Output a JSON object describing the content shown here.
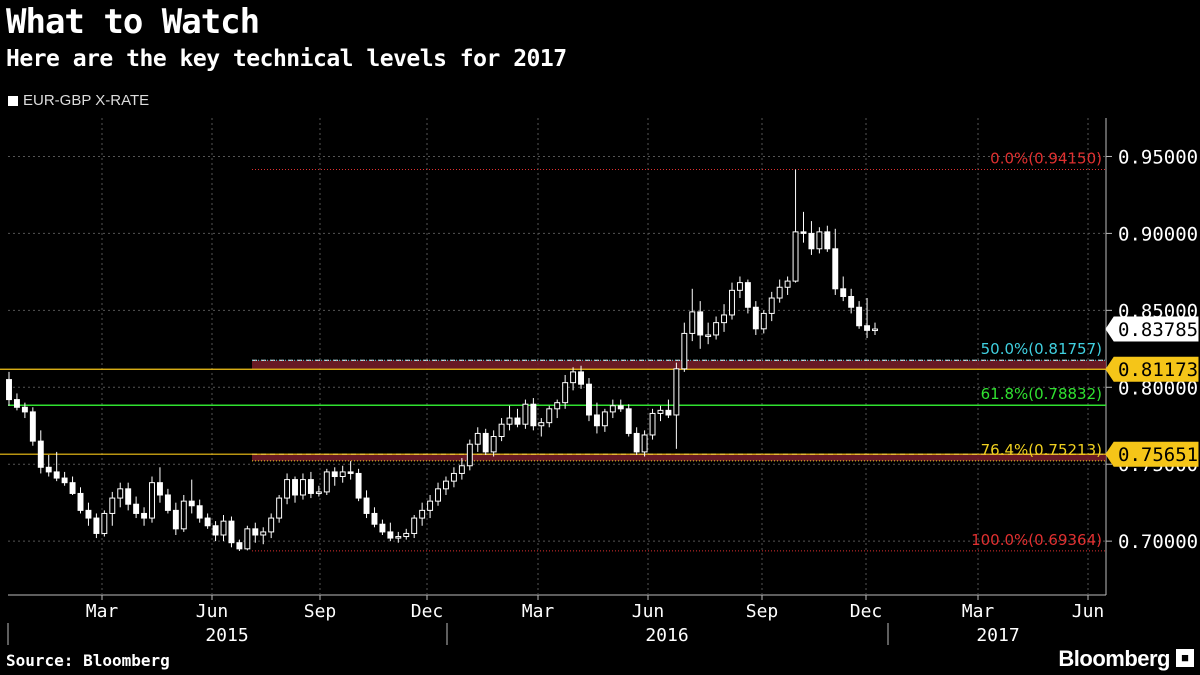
{
  "header": {
    "title": "What to Watch",
    "subtitle": "Here are the key technical levels for 2017"
  },
  "footer": {
    "source": "Source: Bloomberg",
    "brand": "Bloomberg"
  },
  "chart_data": {
    "type": "candlestick",
    "legend": [
      {
        "name": "EUR-GBP X-RATE",
        "color": "#ffffff"
      }
    ],
    "ylim": [
      0.665,
      0.975
    ],
    "y_ticks": [
      "0.70000",
      "0.75000",
      "0.80000",
      "0.85000",
      "0.90000",
      "0.95000"
    ],
    "x_ticks": [
      "Mar",
      "Jun",
      "Sep",
      "Dec",
      "Mar",
      "Jun",
      "Sep",
      "Dec",
      "Mar",
      "Jun"
    ],
    "year_labels": [
      "2015",
      "2016",
      "2017"
    ],
    "grid": true,
    "last_price": {
      "label": "0.83785",
      "value": 0.83785
    },
    "fib_levels": [
      {
        "label": "0.0%(0.94150)",
        "value": 0.9415,
        "color": "#e03030"
      },
      {
        "label": "50.0%(0.81757)",
        "value": 0.81757,
        "color": "#40d0e0"
      },
      {
        "label": "61.8%(0.78832)",
        "value": 0.78832,
        "color": "#30e030"
      },
      {
        "label": "76.4%(0.75213)",
        "value": 0.75213,
        "color": "#f0d020"
      },
      {
        "label": "100.0%(0.69364)",
        "value": 0.69364,
        "color": "#e03030"
      }
    ],
    "level_lines": [
      {
        "label": "0.81173",
        "value": 0.81173,
        "color": "#f5c518"
      },
      {
        "label": "0.75651",
        "value": 0.75651,
        "color": "#f5c518"
      }
    ],
    "candles": [
      {
        "o": 0.805,
        "h": 0.81,
        "l": 0.788,
        "c": 0.792
      },
      {
        "o": 0.792,
        "h": 0.796,
        "l": 0.785,
        "c": 0.787
      },
      {
        "o": 0.787,
        "h": 0.79,
        "l": 0.78,
        "c": 0.784
      },
      {
        "o": 0.784,
        "h": 0.787,
        "l": 0.762,
        "c": 0.765
      },
      {
        "o": 0.765,
        "h": 0.772,
        "l": 0.744,
        "c": 0.748
      },
      {
        "o": 0.748,
        "h": 0.756,
        "l": 0.742,
        "c": 0.745
      },
      {
        "o": 0.745,
        "h": 0.758,
        "l": 0.739,
        "c": 0.741
      },
      {
        "o": 0.741,
        "h": 0.745,
        "l": 0.736,
        "c": 0.738
      },
      {
        "o": 0.738,
        "h": 0.742,
        "l": 0.73,
        "c": 0.731
      },
      {
        "o": 0.731,
        "h": 0.735,
        "l": 0.718,
        "c": 0.72
      },
      {
        "o": 0.72,
        "h": 0.725,
        "l": 0.71,
        "c": 0.715
      },
      {
        "o": 0.715,
        "h": 0.718,
        "l": 0.702,
        "c": 0.705
      },
      {
        "o": 0.705,
        "h": 0.72,
        "l": 0.703,
        "c": 0.718
      },
      {
        "o": 0.718,
        "h": 0.732,
        "l": 0.71,
        "c": 0.728
      },
      {
        "o": 0.728,
        "h": 0.738,
        "l": 0.722,
        "c": 0.734
      },
      {
        "o": 0.734,
        "h": 0.738,
        "l": 0.72,
        "c": 0.724
      },
      {
        "o": 0.724,
        "h": 0.729,
        "l": 0.715,
        "c": 0.718
      },
      {
        "o": 0.718,
        "h": 0.722,
        "l": 0.71,
        "c": 0.715
      },
      {
        "o": 0.715,
        "h": 0.742,
        "l": 0.712,
        "c": 0.738
      },
      {
        "o": 0.738,
        "h": 0.748,
        "l": 0.725,
        "c": 0.73
      },
      {
        "o": 0.73,
        "h": 0.734,
        "l": 0.718,
        "c": 0.72
      },
      {
        "o": 0.72,
        "h": 0.725,
        "l": 0.704,
        "c": 0.708
      },
      {
        "o": 0.708,
        "h": 0.73,
        "l": 0.706,
        "c": 0.726
      },
      {
        "o": 0.726,
        "h": 0.74,
        "l": 0.718,
        "c": 0.723
      },
      {
        "o": 0.723,
        "h": 0.727,
        "l": 0.712,
        "c": 0.715
      },
      {
        "o": 0.715,
        "h": 0.718,
        "l": 0.708,
        "c": 0.71
      },
      {
        "o": 0.71,
        "h": 0.713,
        "l": 0.7,
        "c": 0.704
      },
      {
        "o": 0.704,
        "h": 0.717,
        "l": 0.7,
        "c": 0.713
      },
      {
        "o": 0.713,
        "h": 0.716,
        "l": 0.696,
        "c": 0.699
      },
      {
        "o": 0.699,
        "h": 0.701,
        "l": 0.6936,
        "c": 0.695
      },
      {
        "o": 0.695,
        "h": 0.71,
        "l": 0.694,
        "c": 0.708
      },
      {
        "o": 0.708,
        "h": 0.712,
        "l": 0.699,
        "c": 0.704
      },
      {
        "o": 0.704,
        "h": 0.709,
        "l": 0.698,
        "c": 0.706
      },
      {
        "o": 0.706,
        "h": 0.718,
        "l": 0.702,
        "c": 0.715
      },
      {
        "o": 0.715,
        "h": 0.73,
        "l": 0.712,
        "c": 0.728
      },
      {
        "o": 0.728,
        "h": 0.744,
        "l": 0.724,
        "c": 0.74
      },
      {
        "o": 0.74,
        "h": 0.742,
        "l": 0.725,
        "c": 0.73
      },
      {
        "o": 0.73,
        "h": 0.744,
        "l": 0.727,
        "c": 0.74
      },
      {
        "o": 0.74,
        "h": 0.745,
        "l": 0.728,
        "c": 0.731
      },
      {
        "o": 0.731,
        "h": 0.736,
        "l": 0.729,
        "c": 0.732
      },
      {
        "o": 0.732,
        "h": 0.747,
        "l": 0.73,
        "c": 0.745
      },
      {
        "o": 0.745,
        "h": 0.748,
        "l": 0.736,
        "c": 0.742
      },
      {
        "o": 0.742,
        "h": 0.749,
        "l": 0.738,
        "c": 0.745
      },
      {
        "o": 0.745,
        "h": 0.752,
        "l": 0.74,
        "c": 0.744
      },
      {
        "o": 0.744,
        "h": 0.747,
        "l": 0.726,
        "c": 0.728
      },
      {
        "o": 0.728,
        "h": 0.733,
        "l": 0.715,
        "c": 0.718
      },
      {
        "o": 0.718,
        "h": 0.722,
        "l": 0.709,
        "c": 0.711
      },
      {
        "o": 0.711,
        "h": 0.714,
        "l": 0.704,
        "c": 0.706
      },
      {
        "o": 0.706,
        "h": 0.712,
        "l": 0.7,
        "c": 0.702
      },
      {
        "o": 0.702,
        "h": 0.706,
        "l": 0.699,
        "c": 0.703
      },
      {
        "o": 0.703,
        "h": 0.708,
        "l": 0.701,
        "c": 0.705
      },
      {
        "o": 0.705,
        "h": 0.717,
        "l": 0.702,
        "c": 0.715
      },
      {
        "o": 0.715,
        "h": 0.725,
        "l": 0.71,
        "c": 0.72
      },
      {
        "o": 0.72,
        "h": 0.73,
        "l": 0.715,
        "c": 0.726
      },
      {
        "o": 0.726,
        "h": 0.738,
        "l": 0.723,
        "c": 0.734
      },
      {
        "o": 0.734,
        "h": 0.742,
        "l": 0.73,
        "c": 0.739
      },
      {
        "o": 0.739,
        "h": 0.748,
        "l": 0.735,
        "c": 0.744
      },
      {
        "o": 0.744,
        "h": 0.754,
        "l": 0.74,
        "c": 0.749
      },
      {
        "o": 0.749,
        "h": 0.766,
        "l": 0.746,
        "c": 0.763
      },
      {
        "o": 0.763,
        "h": 0.774,
        "l": 0.758,
        "c": 0.77
      },
      {
        "o": 0.77,
        "h": 0.773,
        "l": 0.756,
        "c": 0.758
      },
      {
        "o": 0.758,
        "h": 0.772,
        "l": 0.755,
        "c": 0.768
      },
      {
        "o": 0.768,
        "h": 0.78,
        "l": 0.765,
        "c": 0.776
      },
      {
        "o": 0.776,
        "h": 0.788,
        "l": 0.772,
        "c": 0.78
      },
      {
        "o": 0.78,
        "h": 0.786,
        "l": 0.774,
        "c": 0.776
      },
      {
        "o": 0.776,
        "h": 0.792,
        "l": 0.773,
        "c": 0.789
      },
      {
        "o": 0.789,
        "h": 0.793,
        "l": 0.772,
        "c": 0.775
      },
      {
        "o": 0.775,
        "h": 0.78,
        "l": 0.768,
        "c": 0.777
      },
      {
        "o": 0.777,
        "h": 0.788,
        "l": 0.774,
        "c": 0.786
      },
      {
        "o": 0.786,
        "h": 0.792,
        "l": 0.78,
        "c": 0.79
      },
      {
        "o": 0.79,
        "h": 0.808,
        "l": 0.786,
        "c": 0.803
      },
      {
        "o": 0.803,
        "h": 0.813,
        "l": 0.798,
        "c": 0.81
      },
      {
        "o": 0.81,
        "h": 0.814,
        "l": 0.799,
        "c": 0.802
      },
      {
        "o": 0.802,
        "h": 0.806,
        "l": 0.778,
        "c": 0.782
      },
      {
        "o": 0.782,
        "h": 0.79,
        "l": 0.77,
        "c": 0.775
      },
      {
        "o": 0.775,
        "h": 0.786,
        "l": 0.771,
        "c": 0.784
      },
      {
        "o": 0.784,
        "h": 0.792,
        "l": 0.78,
        "c": 0.788
      },
      {
        "o": 0.788,
        "h": 0.792,
        "l": 0.784,
        "c": 0.786
      },
      {
        "o": 0.786,
        "h": 0.789,
        "l": 0.768,
        "c": 0.77
      },
      {
        "o": 0.77,
        "h": 0.774,
        "l": 0.756,
        "c": 0.758
      },
      {
        "o": 0.758,
        "h": 0.772,
        "l": 0.755,
        "c": 0.769
      },
      {
        "o": 0.769,
        "h": 0.786,
        "l": 0.766,
        "c": 0.783
      },
      {
        "o": 0.783,
        "h": 0.788,
        "l": 0.778,
        "c": 0.785
      },
      {
        "o": 0.785,
        "h": 0.792,
        "l": 0.78,
        "c": 0.782
      },
      {
        "o": 0.782,
        "h": 0.816,
        "l": 0.76,
        "c": 0.812
      },
      {
        "o": 0.812,
        "h": 0.842,
        "l": 0.81,
        "c": 0.835
      },
      {
        "o": 0.835,
        "h": 0.864,
        "l": 0.83,
        "c": 0.849
      },
      {
        "o": 0.849,
        "h": 0.856,
        "l": 0.825,
        "c": 0.834
      },
      {
        "o": 0.834,
        "h": 0.842,
        "l": 0.828,
        "c": 0.834
      },
      {
        "o": 0.834,
        "h": 0.846,
        "l": 0.831,
        "c": 0.842
      },
      {
        "o": 0.842,
        "h": 0.854,
        "l": 0.836,
        "c": 0.847
      },
      {
        "o": 0.847,
        "h": 0.868,
        "l": 0.844,
        "c": 0.863
      },
      {
        "o": 0.863,
        "h": 0.872,
        "l": 0.858,
        "c": 0.868
      },
      {
        "o": 0.868,
        "h": 0.87,
        "l": 0.848,
        "c": 0.852
      },
      {
        "o": 0.852,
        "h": 0.856,
        "l": 0.834,
        "c": 0.838
      },
      {
        "o": 0.838,
        "h": 0.85,
        "l": 0.835,
        "c": 0.848
      },
      {
        "o": 0.848,
        "h": 0.862,
        "l": 0.843,
        "c": 0.858
      },
      {
        "o": 0.858,
        "h": 0.87,
        "l": 0.855,
        "c": 0.865
      },
      {
        "o": 0.865,
        "h": 0.872,
        "l": 0.86,
        "c": 0.869
      },
      {
        "o": 0.869,
        "h": 0.9415,
        "l": 0.868,
        "c": 0.901
      },
      {
        "o": 0.901,
        "h": 0.914,
        "l": 0.894,
        "c": 0.9
      },
      {
        "o": 0.9,
        "h": 0.908,
        "l": 0.886,
        "c": 0.89
      },
      {
        "o": 0.89,
        "h": 0.904,
        "l": 0.887,
        "c": 0.901
      },
      {
        "o": 0.901,
        "h": 0.905,
        "l": 0.888,
        "c": 0.89
      },
      {
        "o": 0.89,
        "h": 0.903,
        "l": 0.86,
        "c": 0.864
      },
      {
        "o": 0.864,
        "h": 0.872,
        "l": 0.856,
        "c": 0.859
      },
      {
        "o": 0.859,
        "h": 0.864,
        "l": 0.848,
        "c": 0.852
      },
      {
        "o": 0.852,
        "h": 0.856,
        "l": 0.838,
        "c": 0.84
      },
      {
        "o": 0.84,
        "h": 0.858,
        "l": 0.832,
        "c": 0.837
      },
      {
        "o": 0.837,
        "h": 0.842,
        "l": 0.834,
        "c": 0.83785
      }
    ]
  }
}
